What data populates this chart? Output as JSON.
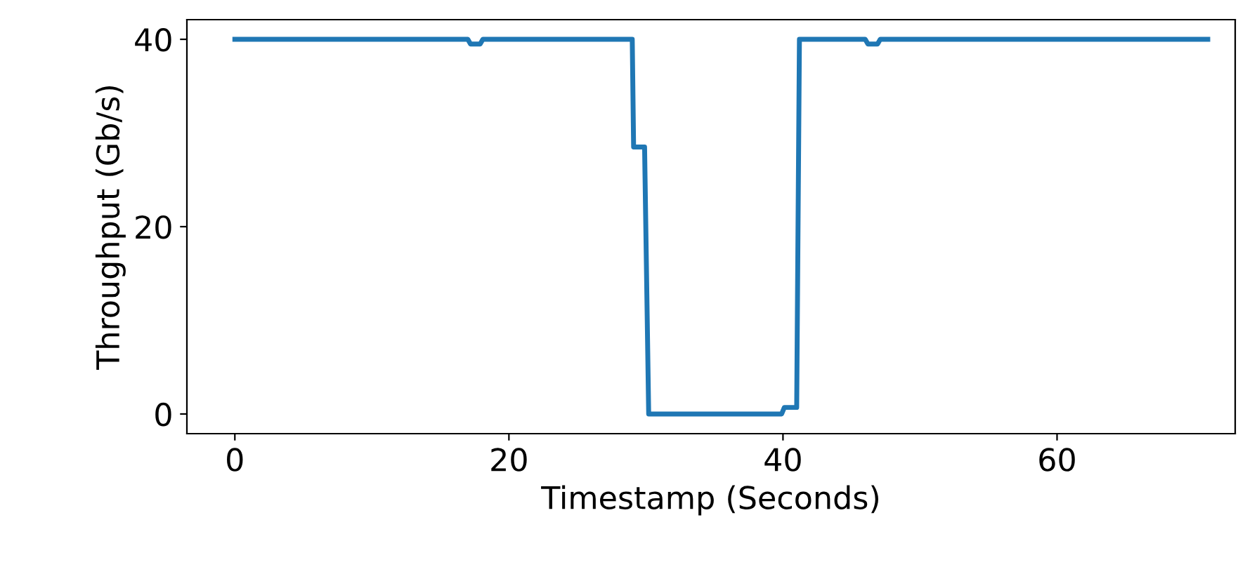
{
  "chart_data": {
    "type": "line",
    "xlabel": "Timestamp (Seconds)",
    "ylabel": "Throughput (Gb/s)",
    "series": [
      {
        "color": "#1f77b4",
        "x": [
          0,
          17,
          17.2,
          17.9,
          18.1,
          29,
          29.1,
          29.9,
          30.2,
          39.9,
          40.1,
          41,
          41.2,
          46,
          46.2,
          46.9,
          47.1,
          71
        ],
        "values": [
          40,
          40,
          39.5,
          39.5,
          40,
          40,
          28.5,
          28.5,
          0,
          0,
          0.7,
          0.7,
          40,
          40,
          39.5,
          39.5,
          40,
          40
        ]
      }
    ],
    "xlim": [
      -3.5,
      73
    ],
    "ylim": [
      -2.1,
      42.1
    ],
    "xticks": [
      0,
      20,
      40,
      60
    ],
    "yticks": [
      0,
      20,
      40
    ],
    "grid": false,
    "legend": false,
    "marker": "none",
    "line_style": "solid"
  }
}
